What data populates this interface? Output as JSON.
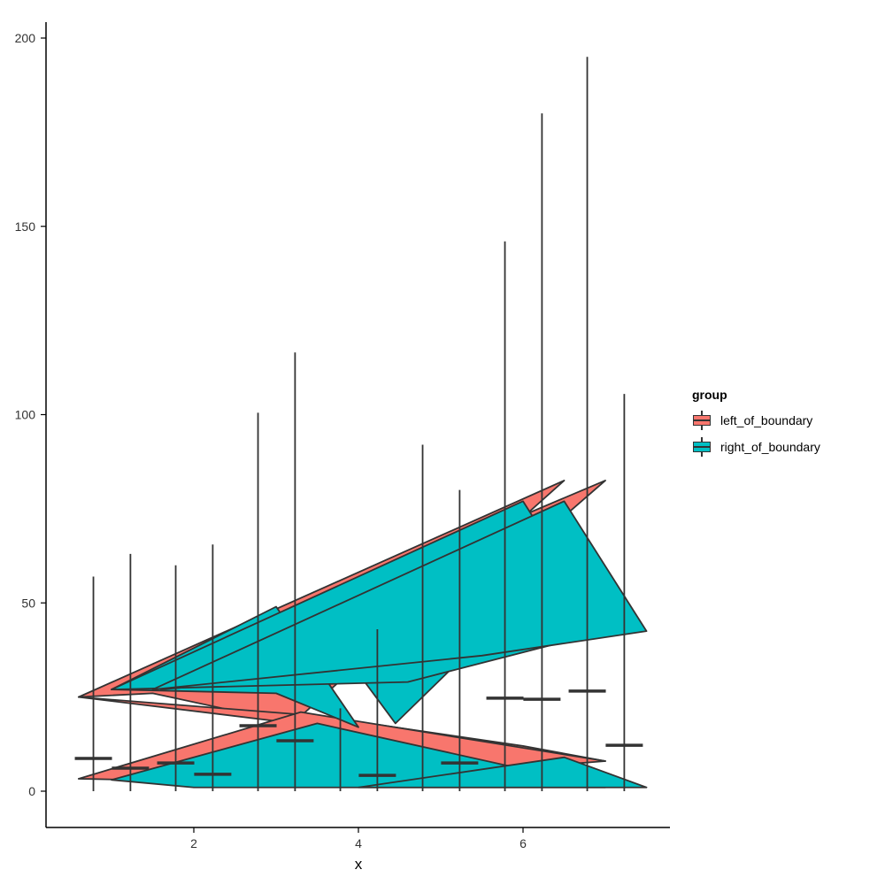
{
  "chart_data": {
    "type": "boxplot",
    "xlabel": "x",
    "ylabel": "",
    "xlim": [
      0.2,
      7.8
    ],
    "ylim": [
      -10,
      205
    ],
    "x_ticks": [
      2,
      4,
      6
    ],
    "y_ticks": [
      0,
      50,
      100,
      150,
      200
    ],
    "grid": false,
    "legend": {
      "title": "group",
      "position": "right",
      "entries": [
        "left_of_boundary",
        "right_of_boundary"
      ]
    },
    "colors": {
      "left_of_boundary": "#F8766D",
      "right_of_boundary": "#00BFC4",
      "outline": "#333333"
    },
    "whiskers": [
      {
        "x": 0.78,
        "low": 0,
        "high": 57
      },
      {
        "x": 1.23,
        "low": 0,
        "high": 63
      },
      {
        "x": 1.78,
        "low": 0,
        "high": 60
      },
      {
        "x": 2.23,
        "low": 0,
        "high": 65.5
      },
      {
        "x": 2.78,
        "low": 0,
        "high": 100.5
      },
      {
        "x": 3.23,
        "low": 0,
        "high": 116.5
      },
      {
        "x": 3.78,
        "low": 0,
        "high": 22
      },
      {
        "x": 4.23,
        "low": 0,
        "high": 43
      },
      {
        "x": 4.78,
        "low": 0,
        "high": 92
      },
      {
        "x": 5.23,
        "low": 0,
        "high": 80
      },
      {
        "x": 5.78,
        "low": 0,
        "high": 146
      },
      {
        "x": 6.23,
        "low": 0,
        "high": 180
      },
      {
        "x": 6.78,
        "low": 0,
        "high": 195
      },
      {
        "x": 7.23,
        "low": 0,
        "high": 105.5
      }
    ],
    "medians": [
      {
        "x": 0.78,
        "y": 8.7
      },
      {
        "x": 1.23,
        "y": 6.1
      },
      {
        "x": 1.78,
        "y": 7.5
      },
      {
        "x": 2.23,
        "y": 4.5
      },
      {
        "x": 2.78,
        "y": 17.4
      },
      {
        "x": 3.23,
        "y": 13.4
      },
      {
        "x": 4.23,
        "y": 4.2
      },
      {
        "x": 5.23,
        "y": 7.5
      },
      {
        "x": 5.78,
        "y": 24.7
      },
      {
        "x": 6.23,
        "y": 24.4
      },
      {
        "x": 6.78,
        "y": 26.6
      },
      {
        "x": 7.23,
        "y": 12.2
      }
    ],
    "polygons": [
      {
        "group": "left_of_boundary",
        "points": [
          [
            0.6,
            25
          ],
          [
            6.5,
            82.5
          ],
          [
            3.2,
            18
          ],
          [
            1.5,
            26
          ],
          [
            0.6,
            25
          ]
        ]
      },
      {
        "group": "left_of_boundary",
        "points": [
          [
            1.0,
            27
          ],
          [
            7.0,
            82.5
          ],
          [
            4.5,
            35
          ],
          [
            2.5,
            43
          ],
          [
            1.0,
            27
          ]
        ]
      },
      {
        "group": "left_of_boundary",
        "points": [
          [
            0.6,
            25
          ],
          [
            7.0,
            8
          ],
          [
            6.0,
            12
          ],
          [
            3.5,
            20
          ],
          [
            0.6,
            25
          ]
        ]
      },
      {
        "group": "left_of_boundary",
        "points": [
          [
            0.6,
            3.3
          ],
          [
            3.3,
            21
          ],
          [
            7.0,
            8
          ],
          [
            3.5,
            2
          ],
          [
            0.6,
            3.3
          ]
        ]
      },
      {
        "group": "right_of_boundary",
        "points": [
          [
            1.0,
            27
          ],
          [
            3.0,
            49
          ],
          [
            4.0,
            17
          ],
          [
            3.0,
            26
          ],
          [
            1.0,
            27
          ]
        ]
      },
      {
        "group": "right_of_boundary",
        "points": [
          [
            1.6,
            27
          ],
          [
            3.4,
            49
          ],
          [
            4.45,
            18
          ],
          [
            5.2,
            34
          ],
          [
            1.6,
            27
          ]
        ]
      },
      {
        "group": "right_of_boundary",
        "points": [
          [
            1.0,
            27
          ],
          [
            6.0,
            77
          ],
          [
            7.0,
            42.5
          ],
          [
            4.6,
            29
          ],
          [
            1.0,
            27
          ]
        ]
      },
      {
        "group": "right_of_boundary",
        "points": [
          [
            1.5,
            27
          ],
          [
            6.5,
            77
          ],
          [
            7.5,
            42.5
          ],
          [
            5.5,
            36
          ],
          [
            1.5,
            27
          ]
        ]
      },
      {
        "group": "right_of_boundary",
        "points": [
          [
            1.0,
            3
          ],
          [
            3.5,
            18
          ],
          [
            7.0,
            1
          ],
          [
            2.0,
            1
          ],
          [
            1.0,
            3
          ]
        ]
      },
      {
        "group": "right_of_boundary",
        "points": [
          [
            4.0,
            1
          ],
          [
            6.5,
            9
          ],
          [
            7.5,
            1
          ],
          [
            4.0,
            1
          ]
        ]
      }
    ]
  }
}
